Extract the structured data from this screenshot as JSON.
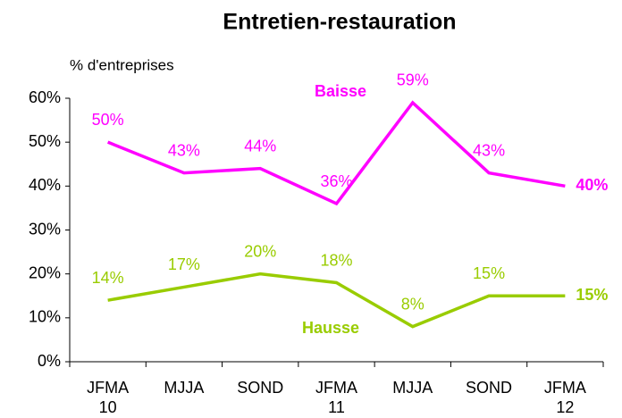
{
  "chart_data": {
    "type": "line",
    "title": "Entretien-restauration",
    "ylabel": "% d'entreprises",
    "categories": [
      "JFMA\n10",
      "MJJA",
      "SOND",
      "JFMA\n11",
      "MJJA",
      "SOND",
      "JFMA\n12"
    ],
    "series": [
      {
        "name": "Baisse",
        "color": "#ff00ff",
        "values": [
          50,
          43,
          44,
          36,
          59,
          43,
          40
        ],
        "value_labels": [
          "50%",
          "43%",
          "44%",
          "36%",
          "59%",
          "43%",
          "40%"
        ]
      },
      {
        "name": "Hausse",
        "color": "#99cc00",
        "values": [
          14,
          17,
          20,
          18,
          8,
          15,
          15
        ],
        "value_labels": [
          "14%",
          "17%",
          "20%",
          "18%",
          "8%",
          "15%",
          "15%"
        ]
      }
    ],
    "ylim": [
      0,
      60
    ],
    "yticks": [
      {
        "value": 0,
        "label": "0%"
      },
      {
        "value": 10,
        "label": "10%"
      },
      {
        "value": 20,
        "label": "20%"
      },
      {
        "value": 30,
        "label": "30%"
      },
      {
        "value": 40,
        "label": "40%"
      },
      {
        "value": 50,
        "label": "50%"
      },
      {
        "value": 60,
        "label": "60%"
      }
    ],
    "grid": false
  }
}
